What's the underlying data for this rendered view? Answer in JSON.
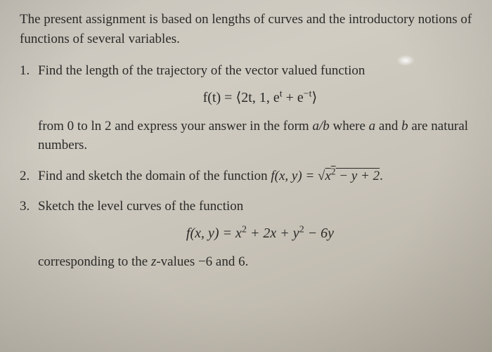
{
  "intro": "The present assignment is based on lengths of curves and the introductory notions of functions of several variables.",
  "problems": {
    "p1": {
      "num": "1.",
      "lead": "Find the length of the trajectory of the vector valued function",
      "eq_lhs": "f(t) = ",
      "eq_open": "⟨",
      "eq_a": "2t, 1, e",
      "eq_exp1": "t",
      "eq_plus": " + e",
      "eq_exp2": "−t",
      "eq_close": "⟩",
      "tail1": "from 0 to ln 2 and express your answer in the form ",
      "frac": "a/b",
      "tail2": " where ",
      "a": "a",
      "and": " and ",
      "b": "b",
      "tail3": " are natural numbers."
    },
    "p2": {
      "num": "2.",
      "lead": "Find and sketch the domain of the function ",
      "fn": "f(x, y) = ",
      "sqrt": "√",
      "radicand_a": "x",
      "radicand_exp": "2",
      "radicand_b": " − y + 2",
      "period": "."
    },
    "p3": {
      "num": "3.",
      "lead": "Sketch the level curves of the function",
      "eq_lhs": "f(x, y) = x",
      "sq1": "2",
      "mid": " + 2x + y",
      "sq2": "2",
      "tail": " − 6y",
      "after": "corresponding to the ",
      "zlabel": "z",
      "after2": "-values −6 and 6."
    }
  }
}
